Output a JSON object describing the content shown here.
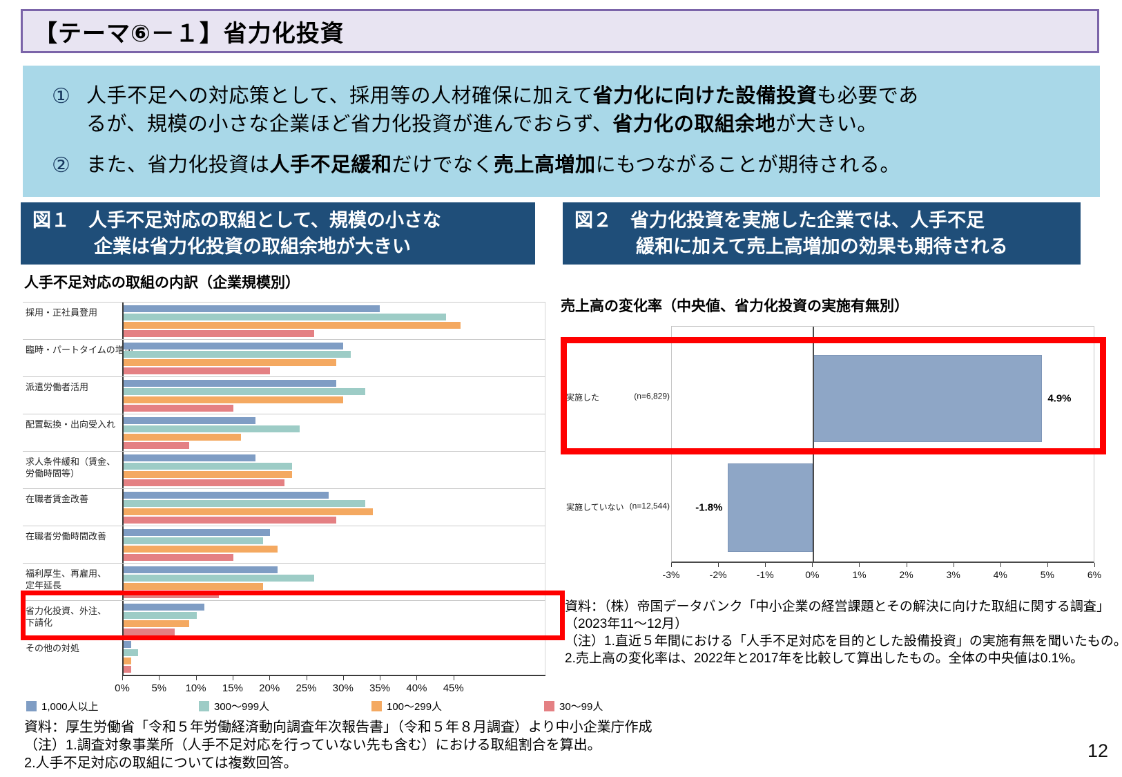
{
  "header": {
    "title": "【テーマ⑥－１】省力化投資"
  },
  "page": {
    "number": "12"
  },
  "colors": {
    "accent_navy": "#1F4E79",
    "summary_bg": "#A9D8E8",
    "title_bg": "#E8E4F2",
    "title_border": "#7B64A9",
    "highlight_red": "#FF0000",
    "series": [
      "#7F9DC4",
      "#9DCCC6",
      "#F4A961",
      "#E48083"
    ],
    "fig2_bar": "#8EA6C6"
  },
  "summary": {
    "points": [
      {
        "num": "①",
        "lines": [
          [
            {
              "t": "人手不足への対応策として、採用等の人材確保に加えて",
              "b": false
            },
            {
              "t": "省力化に向けた設備投資",
              "b": true
            },
            {
              "t": "も必要であ",
              "b": false
            }
          ],
          [
            {
              "t": "るが、規模の小さな企業ほど省力化投資が進んでおらず、",
              "b": false
            },
            {
              "t": "省力化の取組余地",
              "b": true
            },
            {
              "t": "が大きい。",
              "b": false
            }
          ]
        ]
      },
      {
        "num": "②",
        "lines": [
          [
            {
              "t": "また、省力化投資は",
              "b": false
            },
            {
              "t": "人手不足緩和",
              "b": true
            },
            {
              "t": "だけでなく",
              "b": false
            },
            {
              "t": "売上高増加",
              "b": true
            },
            {
              "t": "にもつながることが期待される。",
              "b": false
            }
          ]
        ]
      }
    ]
  },
  "fig1": {
    "header_lines": [
      "図１　人手不足対応の取組として、規模の小さな",
      "企業は省力化投資の取組余地が大きい"
    ],
    "subtitle": "人手不足対応の取組の内訳（企業規模別）",
    "notes": [
      "資料：厚生労働省「令和５年労働経済動向調査年次報告書」（令和５年８月調査）より中小企業庁作成",
      "（注）1.調査対象事業所（人手不足対応を行っていない先も含む）における取組割合を算出。",
      "2.人手不足対応の取組については複数回答。"
    ]
  },
  "fig2": {
    "header_lines": [
      "図２　省力化投資を実施した企業では、人手不足",
      "緩和に加えて売上高増加の効果も期待される"
    ],
    "subtitle": "売上高の変化率（中央値、省力化投資の実施有無別）",
    "notes": [
      "資料：（株）帝国データバンク「中小企業の経営課題とその解決に向けた取組に関する調査」",
      "（2023年11〜12月）",
      "（注）1.直近５年間における「人手不足対応を目的とした設備投資」の実施有無を聞いたもの。",
      "2.売上高の変化率は、2022年と2017年を比較して算出したもの。全体の中央値は0.1%。"
    ]
  },
  "chart_data": [
    {
      "type": "bar",
      "orientation": "horizontal",
      "title": "人手不足対応の取組の内訳（企業規模別）",
      "categories": [
        "採用・正社員登用",
        "臨時・パートタイムの増加",
        "派遣労働者活用",
        "配置転換・出向受入れ",
        "求人条件緩和（賃金、労働時間等）",
        "在職者賃金改善",
        "在職者労働時間改善",
        "福利厚生、再雇用、定年延長",
        "省力化投資、外注、下請化",
        "その他の対処"
      ],
      "label_lines": [
        [
          "採用・正社員登用"
        ],
        [
          "臨時・パートタイムの増加"
        ],
        [
          "派遣労働者活用"
        ],
        [
          "配置転換・出向受入れ"
        ],
        [
          "求人条件緩和（賃金、",
          "労働時間等）"
        ],
        [
          "在職者賃金改善"
        ],
        [
          "在職者労働時間改善"
        ],
        [
          "福利厚生、再雇用、",
          "定年延長"
        ],
        [
          "省力化投資、外注、",
          "下請化"
        ],
        [
          "その他の対処"
        ]
      ],
      "series": [
        {
          "name": "1,000人以上",
          "values": [
            35,
            30,
            29,
            18,
            18,
            28,
            20,
            21,
            11,
            1
          ]
        },
        {
          "name": "300〜999人",
          "values": [
            44,
            31,
            33,
            24,
            23,
            33,
            19,
            26,
            10,
            2
          ]
        },
        {
          "name": "100〜299人",
          "values": [
            46,
            29,
            30,
            16,
            23,
            34,
            21,
            19,
            9,
            1
          ]
        },
        {
          "name": "30〜99人",
          "values": [
            26,
            20,
            15,
            9,
            22,
            29,
            15,
            13,
            7,
            1
          ]
        }
      ],
      "unit": "%",
      "x_ticks": [
        0,
        5,
        10,
        15,
        20,
        25,
        30,
        35,
        40,
        45
      ],
      "xlim": [
        0,
        57.5
      ],
      "grid": "category-separators",
      "legend_position": "bottom",
      "highlighted_category": "省力化投資、外注、下請化"
    },
    {
      "type": "bar",
      "orientation": "horizontal",
      "title": "売上高の変化率（中央値、省力化投資の実施有無別）",
      "categories": [
        "実施した",
        "実施していない"
      ],
      "n_labels": [
        "(n=6,829)",
        "(n=12,544)"
      ],
      "values": [
        4.9,
        -1.8
      ],
      "value_labels": [
        "4.9%",
        "-1.8%"
      ],
      "unit": "%",
      "x_ticks": [
        -3,
        -2,
        -1,
        0,
        1,
        2,
        3,
        4,
        5,
        6
      ],
      "xlim": [
        -3,
        6
      ],
      "grid": "off",
      "highlighted_category": "実施した"
    }
  ]
}
